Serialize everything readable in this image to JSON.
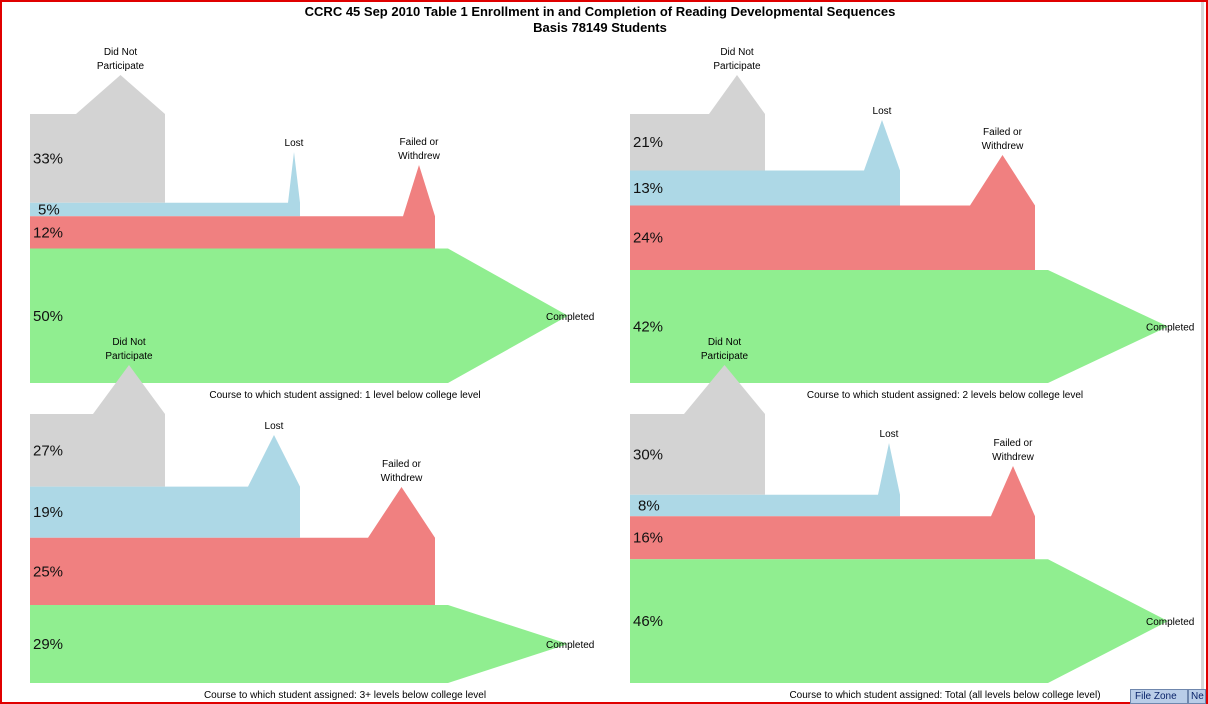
{
  "title": {
    "line1": "CCRC 45 Sep 2010 Table 1 Enrollment in and Completion of Reading Developmental Sequences",
    "line2": "Basis 78149 Students"
  },
  "colors": {
    "did_not_participate": "#d3d3d3",
    "lost": "#add8e6",
    "failed_or_withdrew": "#f08080",
    "completed": "#90ee90",
    "frame_border": "#e00000"
  },
  "chart_data": [
    {
      "type": "flow",
      "caption": "Course to which student assigned: 1 level below college level",
      "categories": [
        "Did Not Participate",
        "Lost",
        "Failed or Withdrew",
        "Completed"
      ],
      "values": [
        33,
        5,
        12,
        50
      ],
      "labels": {
        "did_not_participate": [
          "Did Not",
          "Participate"
        ],
        "lost": [
          "Lost"
        ],
        "failed_or_withdrew": [
          "Failed or",
          "Withdrew"
        ],
        "completed": [
          "Completed"
        ]
      },
      "value_labels": [
        "33%",
        "5%",
        "12%",
        "50%"
      ]
    },
    {
      "type": "flow",
      "caption": "Course to which student assigned: 2 levels below college level",
      "categories": [
        "Did Not Participate",
        "Lost",
        "Failed or Withdrew",
        "Completed"
      ],
      "values": [
        21,
        13,
        24,
        42
      ],
      "labels": {
        "did_not_participate": [
          "Did Not",
          "Participate"
        ],
        "lost": [
          "Lost"
        ],
        "failed_or_withdrew": [
          "Failed or",
          "Withdrew"
        ],
        "completed": [
          "Completed"
        ]
      },
      "value_labels": [
        "21%",
        "13%",
        "24%",
        "42%"
      ]
    },
    {
      "type": "flow",
      "caption": "Course to which student assigned: 3+ levels below college level",
      "categories": [
        "Did Not Participate",
        "Lost",
        "Failed or Withdrew",
        "Completed"
      ],
      "values": [
        27,
        19,
        25,
        29
      ],
      "labels": {
        "did_not_participate": [
          "Did Not",
          "Participate"
        ],
        "lost": [
          "Lost"
        ],
        "failed_or_withdrew": [
          "Failed or",
          "Withdrew"
        ],
        "completed": [
          "Completed"
        ]
      },
      "value_labels": [
        "27%",
        "19%",
        "25%",
        "29%"
      ]
    },
    {
      "type": "flow",
      "caption": "Course to which student assigned: Total (all levels below college level)",
      "categories": [
        "Did Not Participate",
        "Lost",
        "Failed or Withdrew",
        "Completed"
      ],
      "values": [
        30,
        8,
        16,
        46
      ],
      "labels": {
        "did_not_participate": [
          "Did Not",
          "Participate"
        ],
        "lost": [
          "Lost"
        ],
        "failed_or_withdrew": [
          "Failed or",
          "Withdrew"
        ],
        "completed": [
          "Completed"
        ]
      },
      "value_labels": [
        "30%",
        "8%",
        "16%",
        "46%"
      ]
    }
  ],
  "taskbar": {
    "buttons": [
      "File Zone",
      "Ne"
    ]
  }
}
